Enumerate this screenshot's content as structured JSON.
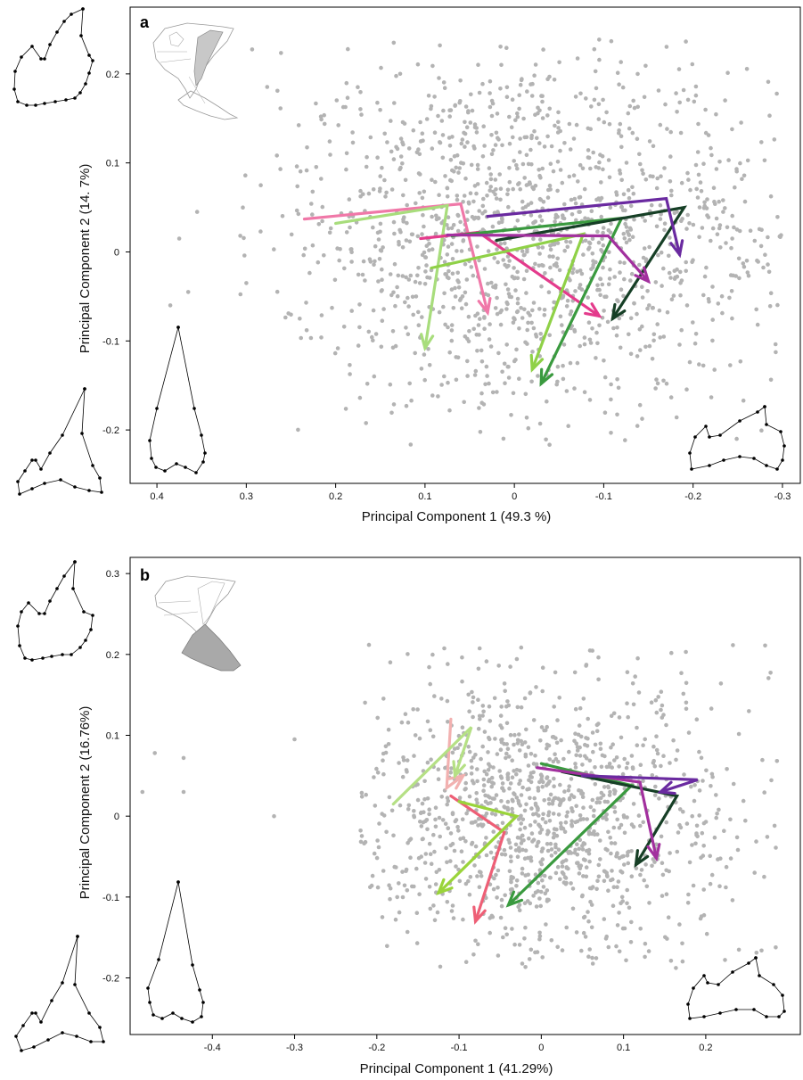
{
  "chart_data": [
    {
      "type": "scatter",
      "panel_label": "a",
      "xlabel": "Principal Component 1 (49.3  %)",
      "ylabel": "Principal Component 2 (14.  7%)",
      "xlim": [
        0.43,
        -0.32
      ],
      "ylim": [
        -0.26,
        0.275
      ],
      "x_axis_reversed": true,
      "xticks": [
        0.4,
        0.3,
        0.2,
        0.1,
        0,
        -0.1,
        -0.2,
        -0.3
      ],
      "xtick_labels": [
        "0.4",
        "0.3",
        "0.2",
        "0.1",
        "0",
        "-0.1",
        "-0.2",
        "-0.3"
      ],
      "yticks": [
        0.2,
        0.1,
        0,
        -0.1,
        -0.2
      ],
      "ytick_labels": [
        "0.2",
        "0.1",
        "0",
        "-0.1",
        "-0.2"
      ],
      "grid": false,
      "point_color": "#b3b3b3",
      "points_description": "approximately 1,400 grey specimen points in a cloud spanning roughly PC1 0.31 to -0.3 and PC2 -0.22 to 0.24",
      "point_cloud": {
        "x_range": [
          0.31,
          -0.3
        ],
        "y_range": [
          -0.22,
          0.24
        ],
        "center": [
          -0.02,
          0.02
        ],
        "count": 1400
      },
      "outlier_points": [
        [
          0.365,
          -0.045
        ],
        [
          0.385,
          -0.06
        ],
        [
          0.375,
          0.015
        ],
        [
          0.135,
          0.235
        ],
        [
          0.355,
          0.045
        ]
      ],
      "trajectories": [
        {
          "color": "#f078a8",
          "points": [
            [
              0.235,
              0.037
            ],
            [
              0.06,
              0.054
            ],
            [
              0.03,
              -0.068
            ]
          ]
        },
        {
          "color": "#a8dd7c",
          "points": [
            [
              0.2,
              0.032
            ],
            [
              0.075,
              0.052
            ],
            [
              0.1,
              -0.108
            ]
          ]
        },
        {
          "color": "#e43b8c",
          "points": [
            [
              0.105,
              0.015
            ],
            [
              0.04,
              0.022
            ],
            [
              -0.095,
              -0.072
            ]
          ]
        },
        {
          "color": "#8fd147",
          "points": [
            [
              0.093,
              -0.018
            ],
            [
              -0.077,
              0.02
            ],
            [
              -0.02,
              -0.132
            ]
          ]
        },
        {
          "color": "#3a9a3f",
          "points": [
            [
              0.07,
              0.018
            ],
            [
              -0.12,
              0.038
            ],
            [
              -0.03,
              -0.148
            ]
          ]
        },
        {
          "color": "#163f26",
          "points": [
            [
              0.02,
              0.013
            ],
            [
              -0.19,
              0.05
            ],
            [
              -0.11,
              -0.075
            ]
          ]
        },
        {
          "color": "#a2309e",
          "points": [
            [
              0.075,
              0.019
            ],
            [
              -0.105,
              0.018
            ],
            [
              -0.15,
              -0.033
            ]
          ]
        },
        {
          "color": "#6a2aa0",
          "points": [
            [
              0.03,
              0.04
            ],
            [
              -0.17,
              0.06
            ],
            [
              -0.185,
              -0.003
            ]
          ]
        }
      ]
    },
    {
      "type": "scatter",
      "panel_label": "b",
      "xlabel": "Principal Component 1 (41.29%)",
      "ylabel": "Principal Component 2 (16.76%)",
      "xlim": [
        -0.5,
        0.315
      ],
      "ylim": [
        -0.27,
        0.32
      ],
      "x_axis_reversed": false,
      "xticks": [
        -0.4,
        -0.3,
        -0.2,
        -0.1,
        0,
        0.1,
        0.2
      ],
      "xtick_labels": [
        "-0.4",
        "-0.3",
        "-0.2",
        "-0.1",
        "0",
        "0.1",
        "0.2"
      ],
      "yticks": [
        0.3,
        0.2,
        0.1,
        0,
        -0.1,
        -0.2
      ],
      "ytick_labels": [
        "0.3",
        "0.2",
        "0.1",
        "0",
        "-0.1",
        "-0.2"
      ],
      "grid": false,
      "point_color": "#b3b3b3",
      "points_description": "approximately 1,200 grey specimen points in a cloud spanning roughly PC1 -0.22 to 0.29 and PC2 -0.19 to 0.22",
      "point_cloud": {
        "x_range": [
          -0.22,
          0.29
        ],
        "y_range": [
          -0.19,
          0.22
        ],
        "center": [
          0.0,
          0.0
        ],
        "count": 1200
      },
      "outlier_points": [
        [
          -0.485,
          0.03
        ],
        [
          -0.47,
          0.078
        ],
        [
          -0.435,
          0.072
        ],
        [
          -0.435,
          0.03
        ],
        [
          -0.325,
          0.0
        ],
        [
          -0.3,
          0.095
        ]
      ],
      "trajectories": [
        {
          "color": "#f2b1b0",
          "points": [
            [
              -0.11,
              0.12
            ],
            [
              -0.115,
              0.035
            ],
            [
              -0.095,
              0.05
            ]
          ]
        },
        {
          "color": "#b5e085",
          "points": [
            [
              -0.18,
              0.015
            ],
            [
              -0.085,
              0.11
            ],
            [
              -0.105,
              0.05
            ]
          ]
        },
        {
          "color": "#ee5f76",
          "points": [
            [
              -0.11,
              0.025
            ],
            [
              -0.045,
              -0.02
            ],
            [
              -0.08,
              -0.13
            ]
          ]
        },
        {
          "color": "#9ad43a",
          "points": [
            [
              -0.1,
              0.018
            ],
            [
              -0.03,
              0.0
            ],
            [
              -0.125,
              -0.095
            ]
          ]
        },
        {
          "color": "#3a9a3f",
          "points": [
            [
              0.0,
              0.065
            ],
            [
              0.11,
              0.038
            ],
            [
              -0.04,
              -0.11
            ]
          ]
        },
        {
          "color": "#163f26",
          "points": [
            [
              0.025,
              0.055
            ],
            [
              0.165,
              0.025
            ],
            [
              0.115,
              -0.06
            ]
          ]
        },
        {
          "color": "#a2309e",
          "points": [
            [
              -0.005,
              0.06
            ],
            [
              0.12,
              0.042
            ],
            [
              0.14,
              -0.052
            ]
          ]
        },
        {
          "color": "#6a2aa0",
          "points": [
            [
              0.05,
              0.05
            ],
            [
              0.19,
              0.045
            ],
            [
              0.145,
              0.03
            ]
          ]
        }
      ]
    }
  ]
}
